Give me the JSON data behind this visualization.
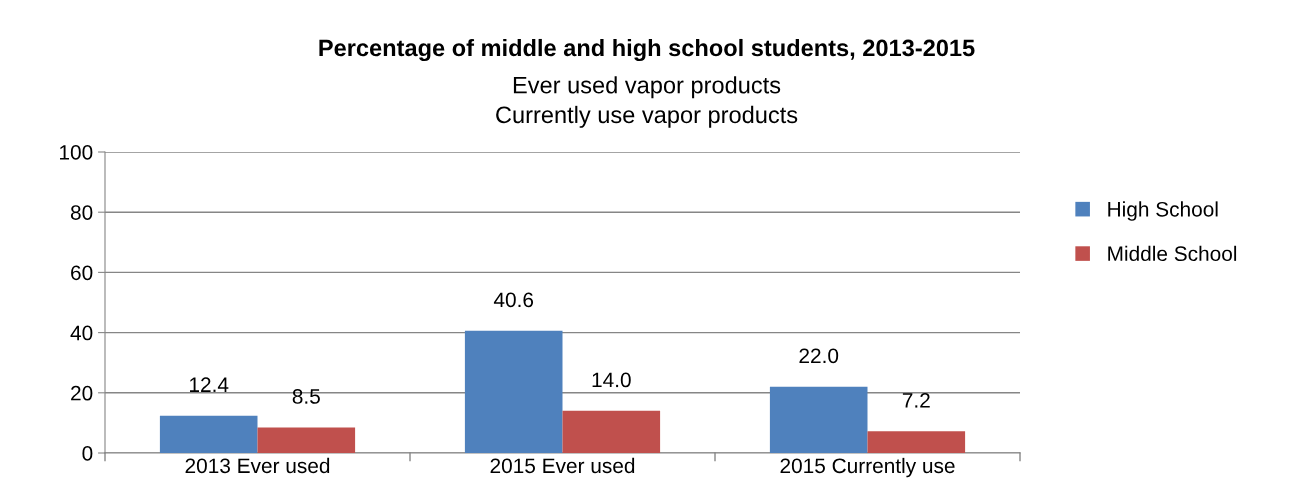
{
  "chart_data": {
    "type": "bar",
    "title": "Percentage of middle and high school students, 2013-2015",
    "subtitle": "Ever used vapor products\nCurrently use vapor products",
    "categories": [
      "2013 Ever used",
      "2015 Ever used",
      "2015 Currently use"
    ],
    "series": [
      {
        "name": "High School",
        "color": "#4f81bd",
        "values": [
          12.4,
          40.6,
          22.0
        ],
        "value_labels": [
          "12.4",
          "40.6",
          "22.0"
        ]
      },
      {
        "name": "Middle School",
        "color": "#c0504d",
        "values": [
          8.5,
          14.0,
          7.2
        ],
        "value_labels": [
          "8.5",
          "14.0",
          "7.2"
        ]
      }
    ],
    "ylim": [
      0,
      100
    ],
    "yticks": [
      0,
      20,
      40,
      60,
      80,
      100
    ],
    "grid": "y",
    "legend": "right"
  }
}
